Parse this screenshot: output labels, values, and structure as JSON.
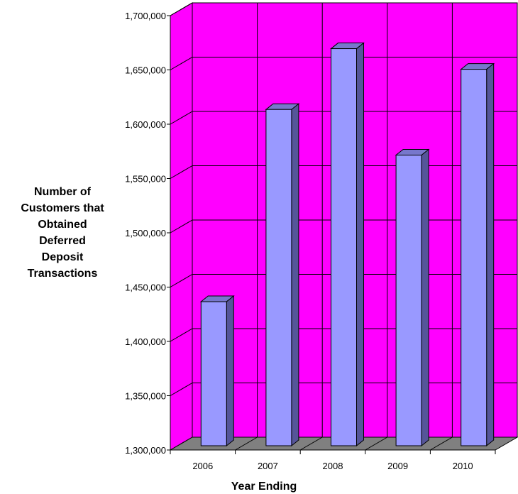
{
  "chart_data": {
    "type": "bar",
    "title": "",
    "xlabel": "Year Ending",
    "ylabel_lines": [
      "Number of",
      "Customers that",
      "Obtained",
      "Deferred",
      "Deposit",
      "Transactions"
    ],
    "categories": [
      "2006",
      "2007",
      "2008",
      "2009",
      "2010"
    ],
    "values": [
      1432000,
      1609000,
      1665000,
      1567000,
      1646000
    ],
    "ylim": [
      1300000,
      1700000
    ],
    "y_ticks": [
      1300000,
      1350000,
      1400000,
      1450000,
      1500000,
      1550000,
      1600000,
      1650000,
      1700000
    ],
    "y_tick_labels": [
      "1,300,000",
      "1,350,000",
      "1,400,000",
      "1,450,000",
      "1,500,000",
      "1,550,000",
      "1,600,000",
      "1,650,000",
      "1,700,000"
    ],
    "grid": true,
    "legend": "none",
    "style": "3d-column"
  },
  "colors": {
    "wall": "#ff00ff",
    "floor": "#808080",
    "bar_front": "#9999ff",
    "bar_side": "#555599",
    "bar_top": "#7777cc",
    "grid": "#000000"
  }
}
